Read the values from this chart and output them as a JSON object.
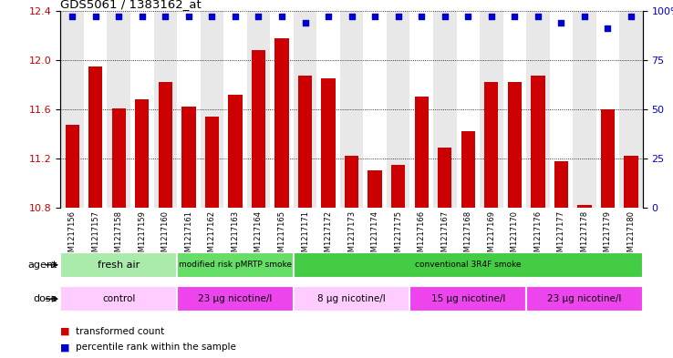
{
  "title": "GDS5061 / 1383162_at",
  "samples": [
    "GSM1217156",
    "GSM1217157",
    "GSM1217158",
    "GSM1217159",
    "GSM1217160",
    "GSM1217161",
    "GSM1217162",
    "GSM1217163",
    "GSM1217164",
    "GSM1217165",
    "GSM1217171",
    "GSM1217172",
    "GSM1217173",
    "GSM1217174",
    "GSM1217175",
    "GSM1217166",
    "GSM1217167",
    "GSM1217168",
    "GSM1217169",
    "GSM1217170",
    "GSM1217176",
    "GSM1217177",
    "GSM1217178",
    "GSM1217179",
    "GSM1217180"
  ],
  "bar_values": [
    11.47,
    11.95,
    11.61,
    11.68,
    11.82,
    11.62,
    11.54,
    11.72,
    12.08,
    12.18,
    11.87,
    11.85,
    11.22,
    11.1,
    11.15,
    11.7,
    11.29,
    11.42,
    11.82,
    11.82,
    11.87,
    11.18,
    10.82,
    11.6,
    11.22
  ],
  "percentile_values": [
    97,
    97,
    97,
    97,
    97,
    97,
    97,
    97,
    97,
    97,
    94,
    97,
    97,
    97,
    97,
    97,
    97,
    97,
    97,
    97,
    97,
    94,
    97,
    91,
    97
  ],
  "bar_color": "#cc0000",
  "percentile_color": "#0000cc",
  "ylim_left": [
    10.8,
    12.4
  ],
  "ylim_right": [
    0,
    100
  ],
  "yticks_left": [
    10.8,
    11.2,
    11.6,
    12.0,
    12.4
  ],
  "yticks_right": [
    0,
    25,
    50,
    75,
    100
  ],
  "grid_values": [
    11.2,
    11.6,
    12.0,
    12.4
  ],
  "agent_groups": [
    {
      "label": "fresh air",
      "start": 0,
      "end": 5,
      "color": "#aaeaaa"
    },
    {
      "label": "modified risk pMRTP smoke",
      "start": 5,
      "end": 10,
      "color": "#66dd66"
    },
    {
      "label": "conventional 3R4F smoke",
      "start": 10,
      "end": 25,
      "color": "#44cc44"
    }
  ],
  "dose_groups": [
    {
      "label": "control",
      "start": 0,
      "end": 5,
      "color": "#ffccff"
    },
    {
      "label": "23 μg nicotine/l",
      "start": 5,
      "end": 10,
      "color": "#ee44ee"
    },
    {
      "label": "8 μg nicotine/l",
      "start": 10,
      "end": 15,
      "color": "#ffccff"
    },
    {
      "label": "15 μg nicotine/l",
      "start": 15,
      "end": 20,
      "color": "#ee44ee"
    },
    {
      "label": "23 μg nicotine/l",
      "start": 20,
      "end": 25,
      "color": "#ee44ee"
    }
  ],
  "bar_width": 0.6,
  "background_color": "#ffffff",
  "axis_label_color_left": "#cc0000",
  "axis_label_color_right": "#0000cc",
  "col_colors": [
    "#e8e8e8",
    "#ffffff"
  ]
}
